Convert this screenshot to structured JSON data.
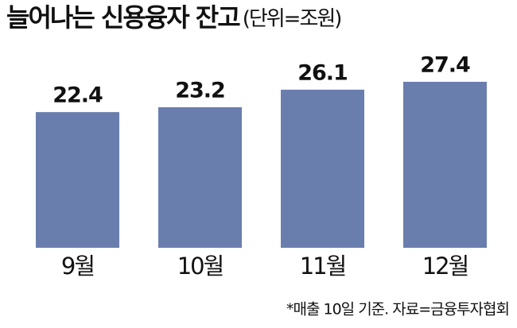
{
  "chart_data": {
    "type": "bar",
    "title": "늘어나는 신용융자 잔고",
    "unit": "(단위=조원)",
    "categories": [
      "9월",
      "10월",
      "11월",
      "12월"
    ],
    "values": [
      22.4,
      23.2,
      26.1,
      27.4
    ],
    "color": "#6a7eae",
    "note": "*매출 10일 기준. 자료=금융투자협회"
  }
}
